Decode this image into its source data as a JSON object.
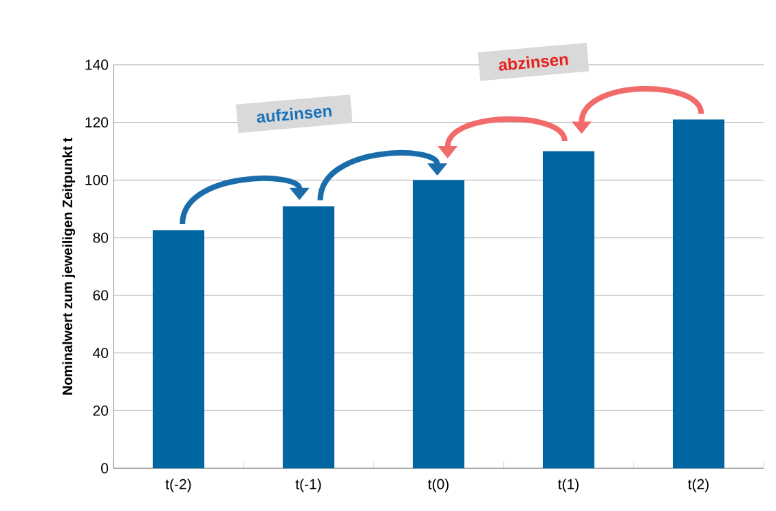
{
  "chart_data": {
    "type": "bar",
    "ylabel": "Nominalwert zum jeweiligen Zeitpunkt t",
    "categories": [
      "t(-2)",
      "t(-1)",
      "t(0)",
      "t(1)",
      "t(2)"
    ],
    "values": [
      82.6,
      90.9,
      100,
      110,
      121
    ],
    "color": "#0066a1",
    "ylim": [
      0,
      140
    ],
    "yticks": [
      0,
      20,
      40,
      60,
      80,
      100,
      120,
      140
    ],
    "grid": "y",
    "annotations": [
      "aufzinsen",
      "abzinsen"
    ]
  }
}
